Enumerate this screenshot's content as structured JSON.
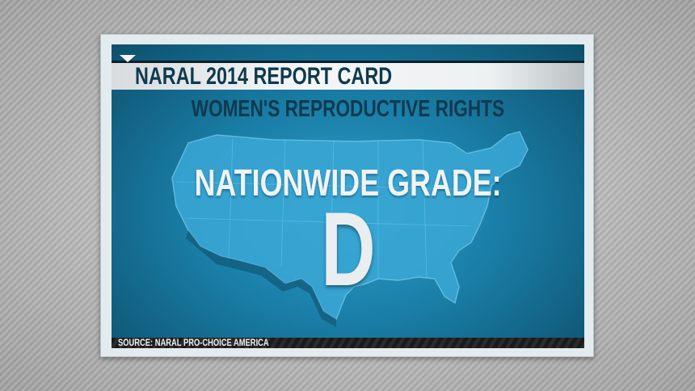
{
  "header": {
    "title": "NARAL 2014 REPORT CARD"
  },
  "subtitle": "WOMEN'S REPRODUCTIVE RIGHTS",
  "grade": {
    "label": "NATIONWIDE GRADE:",
    "value": "D"
  },
  "source": "SOURCE: NARAL PRO-CHOICE AMERICA",
  "colors": {
    "panel": "#1a7fa8",
    "title_text": "#0f3a4e",
    "grade_text": "#e9eef0"
  },
  "map": {
    "subject": "united-states-map"
  }
}
